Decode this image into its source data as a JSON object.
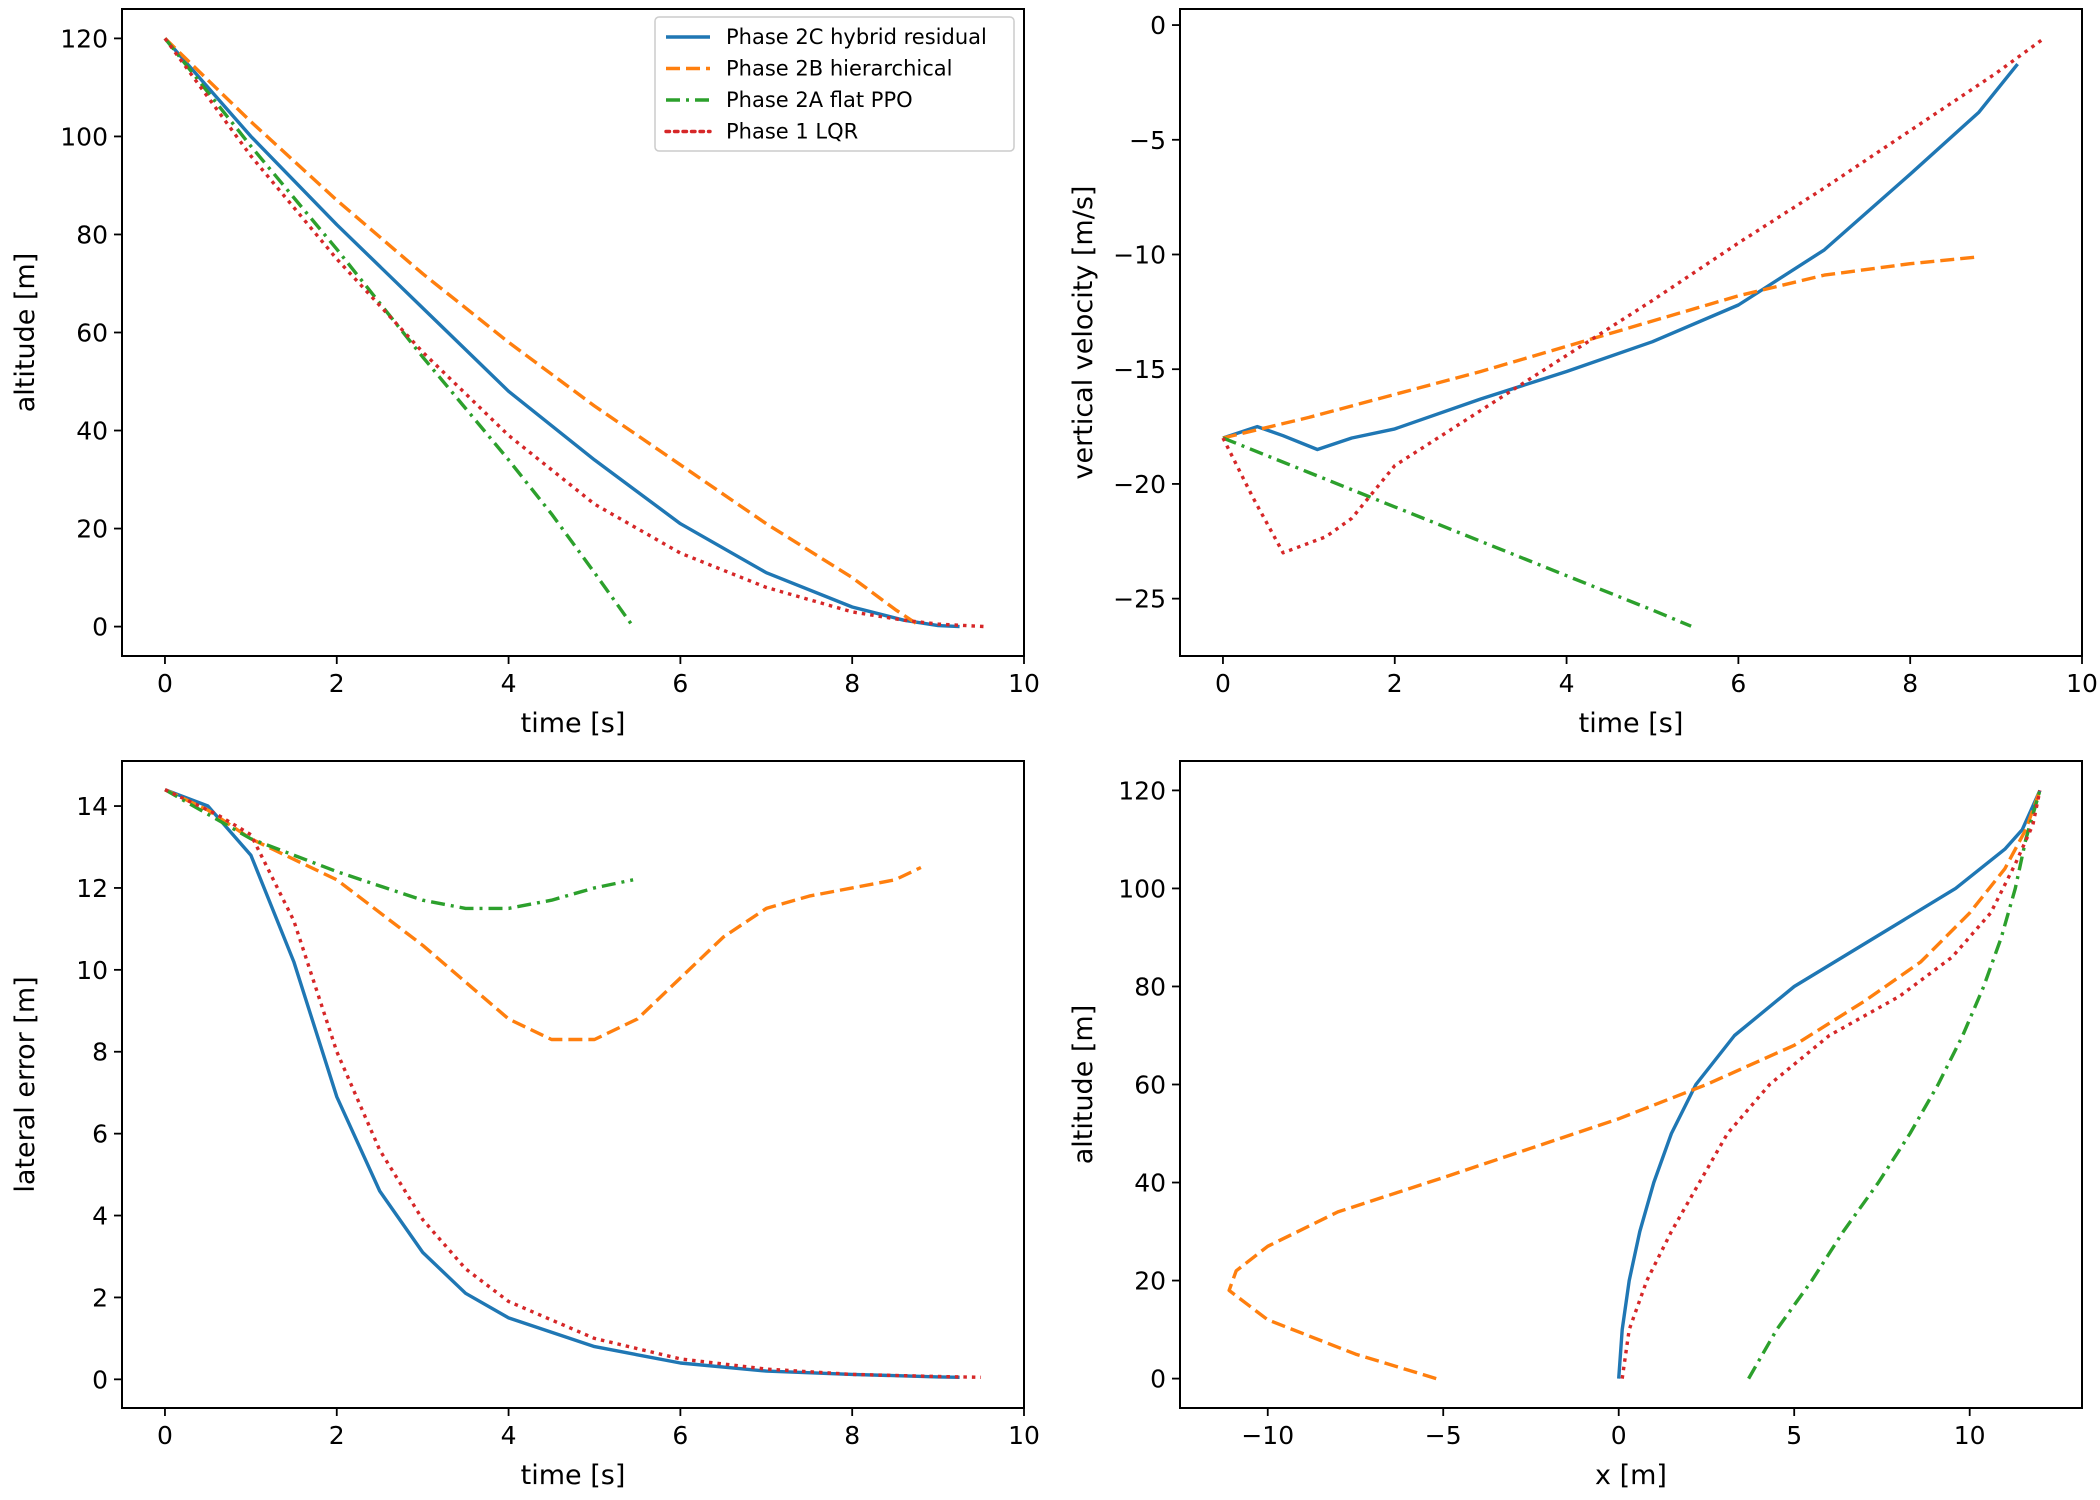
{
  "colors": {
    "Phase 2C hybrid residual": "#1f77b4",
    "Phase 2B hierarchical": "#ff7f0e",
    "Phase 2A flat PPO": "#2ca02c",
    "Phase 1 LQR": "#d62728"
  },
  "dash_styles": {
    "Phase 2C hybrid residual": "solid",
    "Phase 2B hierarchical": "dashed",
    "Phase 2A flat PPO": "dash-dot",
    "Phase 1 LQR": "dotted"
  },
  "chart_data": [
    {
      "type": "line",
      "xlabel": "time [s]",
      "ylabel": "altitude [m]",
      "xlim": [
        -0.5,
        10
      ],
      "ylim": [
        -6,
        126
      ],
      "xticks": [
        0,
        2,
        4,
        6,
        8,
        10
      ],
      "yticks": [
        0,
        20,
        40,
        60,
        80,
        100,
        120
      ],
      "grid": false,
      "legend": "top-right",
      "series": [
        {
          "name": "Phase 2C hybrid residual",
          "points": [
            [
              0,
              120
            ],
            [
              1,
              100
            ],
            [
              2,
              82
            ],
            [
              3,
              65
            ],
            [
              4,
              48
            ],
            [
              5,
              34
            ],
            [
              6,
              21
            ],
            [
              7,
              11
            ],
            [
              8,
              4
            ],
            [
              8.6,
              1.3
            ],
            [
              9,
              0.2
            ],
            [
              9.25,
              0
            ]
          ]
        },
        {
          "name": "Phase 2B hierarchical",
          "points": [
            [
              0,
              120
            ],
            [
              1,
              103
            ],
            [
              2,
              87
            ],
            [
              3,
              72
            ],
            [
              4,
              58
            ],
            [
              5,
              45
            ],
            [
              6,
              33
            ],
            [
              7,
              21
            ],
            [
              8,
              10
            ],
            [
              8.5,
              3.5
            ],
            [
              8.8,
              0
            ]
          ]
        },
        {
          "name": "Phase 2A flat PPO",
          "points": [
            [
              0,
              120
            ],
            [
              1,
              98
            ],
            [
              2,
              77
            ],
            [
              3,
              55
            ],
            [
              4,
              34
            ],
            [
              4.5,
              23
            ],
            [
              5,
              11
            ],
            [
              5.45,
              0
            ]
          ]
        },
        {
          "name": "Phase 1 LQR",
          "points": [
            [
              0,
              120
            ],
            [
              1,
              96
            ],
            [
              2,
              75
            ],
            [
              3,
              56
            ],
            [
              4,
              39
            ],
            [
              5,
              25
            ],
            [
              6,
              15
            ],
            [
              7,
              8
            ],
            [
              8,
              3
            ],
            [
              8.6,
              1.3
            ],
            [
              9,
              0.5
            ],
            [
              9.55,
              0
            ]
          ]
        }
      ]
    },
    {
      "type": "line",
      "xlabel": "time [s]",
      "ylabel": "vertical velocity [m/s]",
      "xlim": [
        -0.5,
        10
      ],
      "ylim": [
        -27.5,
        0.7
      ],
      "xticks": [
        0,
        2,
        4,
        6,
        8,
        10
      ],
      "yticks": [
        0,
        -5,
        -10,
        -15,
        -20,
        -25
      ],
      "grid": false,
      "series": [
        {
          "name": "Phase 2C hybrid residual",
          "points": [
            [
              0,
              -18
            ],
            [
              0.4,
              -17.5
            ],
            [
              0.7,
              -17.9
            ],
            [
              1.1,
              -18.5
            ],
            [
              1.5,
              -18
            ],
            [
              2,
              -17.6
            ],
            [
              3,
              -16.3
            ],
            [
              4,
              -15.1
            ],
            [
              5,
              -13.8
            ],
            [
              6,
              -12.2
            ],
            [
              7,
              -9.8
            ],
            [
              8,
              -6.5
            ],
            [
              8.8,
              -3.8
            ],
            [
              9.25,
              -1.7
            ]
          ]
        },
        {
          "name": "Phase 2B hierarchical",
          "points": [
            [
              0,
              -18
            ],
            [
              1,
              -17.1
            ],
            [
              2,
              -16.1
            ],
            [
              3,
              -15.1
            ],
            [
              4,
              -14
            ],
            [
              5,
              -12.9
            ],
            [
              6,
              -11.8
            ],
            [
              7,
              -10.9
            ],
            [
              8,
              -10.4
            ],
            [
              8.8,
              -10.1
            ]
          ]
        },
        {
          "name": "Phase 2A flat PPO",
          "points": [
            [
              0,
              -18
            ],
            [
              1,
              -19.5
            ],
            [
              2,
              -21
            ],
            [
              3,
              -22.5
            ],
            [
              4,
              -24
            ],
            [
              5,
              -25.5
            ],
            [
              5.45,
              -26.2
            ]
          ]
        },
        {
          "name": "Phase 1 LQR",
          "points": [
            [
              0,
              -18
            ],
            [
              0.35,
              -20.6
            ],
            [
              0.7,
              -23
            ],
            [
              1.2,
              -22.3
            ],
            [
              1.5,
              -21.5
            ],
            [
              2,
              -19.2
            ],
            [
              3,
              -16.8
            ],
            [
              4,
              -14.4
            ],
            [
              5,
              -12
            ],
            [
              6,
              -9.5
            ],
            [
              7,
              -7.1
            ],
            [
              8,
              -4.6
            ],
            [
              9,
              -2.1
            ],
            [
              9.55,
              -0.6
            ]
          ]
        }
      ]
    },
    {
      "type": "line",
      "xlabel": "time [s]",
      "ylabel": "lateral error [m]",
      "xlim": [
        -0.5,
        10
      ],
      "ylim": [
        -0.7,
        15.1
      ],
      "xticks": [
        0,
        2,
        4,
        6,
        8,
        10
      ],
      "yticks": [
        0,
        2,
        4,
        6,
        8,
        10,
        12,
        14
      ],
      "grid": false,
      "series": [
        {
          "name": "Phase 2C hybrid residual",
          "points": [
            [
              0,
              14.4
            ],
            [
              0.5,
              14
            ],
            [
              1,
              12.8
            ],
            [
              1.5,
              10.2
            ],
            [
              2,
              6.9
            ],
            [
              2.5,
              4.6
            ],
            [
              3,
              3.1
            ],
            [
              3.5,
              2.1
            ],
            [
              4,
              1.5
            ],
            [
              5,
              0.8
            ],
            [
              6,
              0.4
            ],
            [
              7,
              0.2
            ],
            [
              8,
              0.12
            ],
            [
              9,
              0.06
            ],
            [
              9.25,
              0.05
            ]
          ]
        },
        {
          "name": "Phase 2B hierarchical",
          "points": [
            [
              0,
              14.4
            ],
            [
              0.5,
              13.9
            ],
            [
              1,
              13.2
            ],
            [
              2,
              12.2
            ],
            [
              3,
              10.6
            ],
            [
              4,
              8.8
            ],
            [
              4.5,
              8.3
            ],
            [
              5,
              8.3
            ],
            [
              5.5,
              8.8
            ],
            [
              6,
              9.8
            ],
            [
              6.5,
              10.8
            ],
            [
              7,
              11.5
            ],
            [
              7.5,
              11.8
            ],
            [
              8,
              12
            ],
            [
              8.5,
              12.2
            ],
            [
              8.8,
              12.5
            ]
          ]
        },
        {
          "name": "Phase 2A flat PPO",
          "points": [
            [
              0,
              14.4
            ],
            [
              1,
              13.2
            ],
            [
              2,
              12.4
            ],
            [
              3,
              11.7
            ],
            [
              3.5,
              11.5
            ],
            [
              4,
              11.5
            ],
            [
              4.5,
              11.7
            ],
            [
              5,
              12
            ],
            [
              5.45,
              12.2
            ]
          ]
        },
        {
          "name": "Phase 1 LQR",
          "points": [
            [
              0,
              14.4
            ],
            [
              0.6,
              13.8
            ],
            [
              1,
              13.3
            ],
            [
              1.5,
              11.2
            ],
            [
              2,
              8
            ],
            [
              2.5,
              5.6
            ],
            [
              3,
              3.9
            ],
            [
              3.5,
              2.7
            ],
            [
              4,
              1.9
            ],
            [
              5,
              1
            ],
            [
              6,
              0.5
            ],
            [
              7,
              0.25
            ],
            [
              8,
              0.12
            ],
            [
              9,
              0.07
            ],
            [
              9.5,
              0.05
            ]
          ]
        }
      ]
    },
    {
      "type": "line",
      "xlabel": "x [m]",
      "ylabel": "altitude [m]",
      "xlim": [
        -12.5,
        13.2
      ],
      "ylim": [
        -6,
        126
      ],
      "xticks": [
        -10,
        -5,
        0,
        5,
        10
      ],
      "yticks": [
        0,
        20,
        40,
        60,
        80,
        100,
        120
      ],
      "grid": false,
      "series": [
        {
          "name": "Phase 2C hybrid residual",
          "points": [
            [
              0,
              0
            ],
            [
              0.1,
              10
            ],
            [
              0.3,
              20
            ],
            [
              0.6,
              30
            ],
            [
              1,
              40
            ],
            [
              1.5,
              50
            ],
            [
              2.2,
              60
            ],
            [
              3.3,
              70
            ],
            [
              5,
              80
            ],
            [
              7.3,
              90
            ],
            [
              9.6,
              100
            ],
            [
              11,
              108
            ],
            [
              11.5,
              112
            ],
            [
              12,
              120
            ]
          ]
        },
        {
          "name": "Phase 2B hierarchical",
          "points": [
            [
              -5.2,
              0
            ],
            [
              -7.5,
              5
            ],
            [
              -10,
              12
            ],
            [
              -11.1,
              18
            ],
            [
              -10.9,
              22
            ],
            [
              -10,
              27
            ],
            [
              -8,
              34
            ],
            [
              -5,
              41
            ],
            [
              -2.5,
              47
            ],
            [
              0,
              53
            ],
            [
              2.5,
              60
            ],
            [
              5,
              68
            ],
            [
              7,
              77
            ],
            [
              8.6,
              85
            ],
            [
              10,
              95
            ],
            [
              11,
              104
            ],
            [
              11.6,
              112
            ],
            [
              12,
              120
            ]
          ]
        },
        {
          "name": "Phase 2A flat PPO",
          "points": [
            [
              3.7,
              0
            ],
            [
              4.5,
              10
            ],
            [
              5.5,
              20
            ],
            [
              6.4,
              30
            ],
            [
              7.4,
              40
            ],
            [
              8.3,
              50
            ],
            [
              9.1,
              60
            ],
            [
              9.8,
              70
            ],
            [
              10.4,
              80
            ],
            [
              10.9,
              90
            ],
            [
              11.3,
              100
            ],
            [
              11.6,
              110
            ],
            [
              12,
              120
            ]
          ]
        },
        {
          "name": "Phase 1 LQR",
          "points": [
            [
              0.1,
              0
            ],
            [
              0.3,
              10
            ],
            [
              0.8,
              20
            ],
            [
              1.5,
              30
            ],
            [
              2.3,
              40
            ],
            [
              3.1,
              50
            ],
            [
              4.3,
              60
            ],
            [
              6,
              70
            ],
            [
              8,
              78
            ],
            [
              9.5,
              86
            ],
            [
              10.6,
              95
            ],
            [
              11.3,
              105
            ],
            [
              11.8,
              113
            ],
            [
              12,
              120
            ]
          ]
        }
      ]
    }
  ]
}
